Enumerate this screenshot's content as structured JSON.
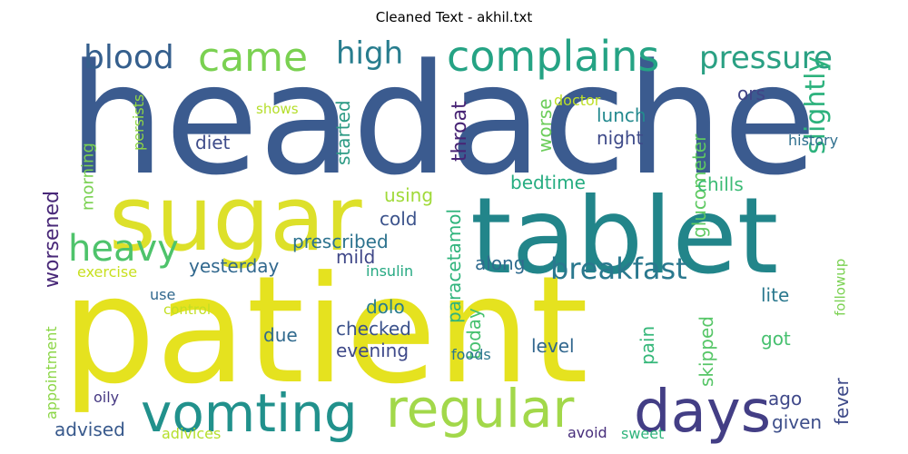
{
  "title": "Cleaned Text - akhil.txt",
  "words": [
    {
      "text": "headache",
      "color": "#3b5b8f"
    },
    {
      "text": "patient",
      "color": "#e5e21f"
    },
    {
      "text": "tablet",
      "color": "#22858a"
    },
    {
      "text": "sugar",
      "color": "#dde02a"
    },
    {
      "text": "vomting",
      "color": "#21918c"
    },
    {
      "text": "regular",
      "color": "#a2d84a"
    },
    {
      "text": "days",
      "color": "#433e85"
    },
    {
      "text": "complains",
      "color": "#25a384"
    },
    {
      "text": "came",
      "color": "#7ad151"
    },
    {
      "text": "blood",
      "color": "#355f8d"
    },
    {
      "text": "high",
      "color": "#287d8e"
    },
    {
      "text": "pressure",
      "color": "#2aa083"
    },
    {
      "text": "heavy",
      "color": "#4ec36b"
    },
    {
      "text": "breakfast",
      "color": "#2a788e"
    },
    {
      "text": "slightly",
      "color": "#2db27d"
    },
    {
      "text": "throat",
      "color": "#482475"
    },
    {
      "text": "lunch",
      "color": "#23898e"
    },
    {
      "text": "night",
      "color": "#3e4a89"
    },
    {
      "text": "diet",
      "color": "#3e4c8a"
    },
    {
      "text": "started",
      "color": "#2c9a84"
    },
    {
      "text": "ors",
      "color": "#414487"
    },
    {
      "text": "doctor",
      "color": "#bddf26"
    },
    {
      "text": "shows",
      "color": "#b5de2b"
    },
    {
      "text": "persists",
      "color": "#8fd744"
    },
    {
      "text": "morning",
      "color": "#7ad151"
    },
    {
      "text": "worse",
      "color": "#6ccd5a"
    },
    {
      "text": "glucometer",
      "color": "#5ec962"
    },
    {
      "text": "history",
      "color": "#2e6f8e"
    },
    {
      "text": "bedtime",
      "color": "#26ad81"
    },
    {
      "text": "chills",
      "color": "#3bbb75"
    },
    {
      "text": "using",
      "color": "#a0da39"
    },
    {
      "text": "cold",
      "color": "#3b528b"
    },
    {
      "text": "paracetamol",
      "color": "#2fb47c"
    },
    {
      "text": "worsened",
      "color": "#482878"
    },
    {
      "text": "prescribed",
      "color": "#2c728e"
    },
    {
      "text": "mild",
      "color": "#3f4788"
    },
    {
      "text": "yesterday",
      "color": "#31688e"
    },
    {
      "text": "exercise",
      "color": "#c8e020"
    },
    {
      "text": "insulin",
      "color": "#26a982"
    },
    {
      "text": "along",
      "color": "#2f6b8e"
    },
    {
      "text": "lite",
      "color": "#2a788e"
    },
    {
      "text": "followup",
      "color": "#7ad151"
    },
    {
      "text": "use",
      "color": "#31688e"
    },
    {
      "text": "dolo",
      "color": "#287c8e"
    },
    {
      "text": "control",
      "color": "#c2df23"
    },
    {
      "text": "checked",
      "color": "#3b528b"
    },
    {
      "text": "today",
      "color": "#46c06f"
    },
    {
      "text": "skipped",
      "color": "#56c667"
    },
    {
      "text": "pain",
      "color": "#35b779"
    },
    {
      "text": "got",
      "color": "#46c06f"
    },
    {
      "text": "due",
      "color": "#306a8e"
    },
    {
      "text": "evening",
      "color": "#3e4989"
    },
    {
      "text": "level",
      "color": "#31678e"
    },
    {
      "text": "appointment",
      "color": "#8bd646"
    },
    {
      "text": "foods",
      "color": "#2a778e"
    },
    {
      "text": "ago",
      "color": "#3f4889"
    },
    {
      "text": "fever",
      "color": "#3e4a89"
    },
    {
      "text": "oily",
      "color": "#453882"
    },
    {
      "text": "advised",
      "color": "#38598c"
    },
    {
      "text": "adivices",
      "color": "#b5de2b"
    },
    {
      "text": "avoid",
      "color": "#472d7b"
    },
    {
      "text": "sweet",
      "color": "#2fb47c"
    },
    {
      "text": "given",
      "color": "#3d4e8a"
    }
  ]
}
